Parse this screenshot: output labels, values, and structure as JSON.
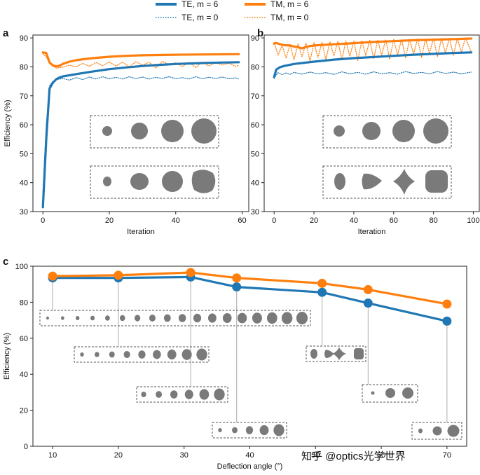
{
  "colors": {
    "te": "#1f77b4",
    "tm": "#ff7f0e",
    "shape": "#7a7a7a"
  },
  "legend": {
    "items": [
      {
        "label": "TE, m = 6",
        "series": "te6",
        "style": "solid"
      },
      {
        "label": "TM, m = 6",
        "series": "tm6",
        "style": "solid"
      },
      {
        "label": "TE, m = 0",
        "series": "te0",
        "style": "dotted"
      },
      {
        "label": "TM, m = 0",
        "series": "tm0",
        "style": "dotted"
      }
    ]
  },
  "panel_a": {
    "letter": "a"
  },
  "panel_b": {
    "letter": "b"
  },
  "panel_c": {
    "letter": "c"
  },
  "watermark": "知乎 @optics光学世界",
  "chart_data": [
    {
      "panel": "a",
      "type": "line",
      "xlabel": "Iteration",
      "ylabel": "Efficiency (%)",
      "xlim": [
        -3,
        62
      ],
      "ylim": [
        30,
        91
      ],
      "xticks": [
        0,
        20,
        40,
        60
      ],
      "yticks": [
        30,
        40,
        50,
        60,
        70,
        80,
        90
      ],
      "series": [
        {
          "name": "TE, m = 6",
          "key": "te6",
          "x": [
            0,
            1,
            2,
            3,
            4,
            5,
            6,
            8,
            10,
            15,
            20,
            25,
            30,
            35,
            40,
            45,
            50,
            55,
            59
          ],
          "y": [
            31.5,
            55,
            72.5,
            74.5,
            75.7,
            76.3,
            76.7,
            77.1,
            77.5,
            78.4,
            79.2,
            79.8,
            80.3,
            80.7,
            81.0,
            81.2,
            81.4,
            81.5,
            81.6
          ]
        },
        {
          "name": "TM, m = 6",
          "key": "tm6",
          "x": [
            0,
            1,
            2,
            3,
            4,
            5,
            6,
            8,
            10,
            15,
            20,
            25,
            30,
            40,
            50,
            59
          ],
          "y": [
            85.0,
            84.8,
            81.5,
            80.5,
            80.2,
            80.4,
            81.0,
            81.8,
            82.3,
            83.0,
            83.5,
            83.8,
            84.0,
            84.2,
            84.3,
            84.4
          ]
        },
        {
          "name": "TE, m = 0",
          "key": "te0",
          "x": [
            0,
            1,
            2,
            3,
            4,
            6,
            8,
            10,
            12,
            14,
            16,
            18,
            20,
            22,
            24,
            26,
            28,
            30,
            32,
            34,
            36,
            38,
            40,
            42,
            44,
            46,
            48,
            50,
            52,
            54,
            56,
            58,
            59
          ],
          "y": [
            36,
            60,
            73.5,
            75.0,
            75.6,
            76.0,
            75.4,
            76.3,
            75.6,
            76.5,
            75.8,
            76.6,
            75.9,
            76.4,
            75.8,
            76.6,
            75.9,
            76.5,
            75.8,
            76.4,
            76.0,
            76.6,
            75.9,
            76.3,
            75.8,
            76.6,
            75.9,
            76.4,
            76.0,
            76.5,
            75.9,
            76.2,
            75.8
          ]
        },
        {
          "name": "TM, m = 0",
          "key": "tm0",
          "x": [
            0,
            1,
            2,
            3,
            4,
            6,
            8,
            10,
            12,
            14,
            16,
            18,
            20,
            22,
            24,
            26,
            28,
            30,
            32,
            34,
            36,
            38,
            40,
            42,
            44,
            46,
            48,
            50,
            52,
            54,
            56,
            58,
            59
          ],
          "y": [
            84.5,
            83.5,
            81.2,
            80.2,
            79.6,
            79.9,
            80.6,
            80.0,
            81.2,
            80.2,
            81.5,
            80.4,
            81.7,
            80.3,
            81.6,
            80.0,
            81.8,
            80.6,
            81.6,
            79.6,
            81.9,
            80.8,
            81.4,
            80.1,
            81.6,
            79.8,
            81.7,
            80.3,
            81.5,
            80.6,
            81.3,
            80.2,
            80.6
          ]
        }
      ]
    },
    {
      "panel": "b",
      "type": "line",
      "xlabel": "Iteration",
      "ylabel": "",
      "xlim": [
        -5,
        103
      ],
      "ylim": [
        30,
        91
      ],
      "xticks": [
        0,
        20,
        40,
        60,
        80,
        100
      ],
      "yticks": [
        30,
        40,
        50,
        60,
        70,
        80,
        90
      ],
      "series": [
        {
          "name": "TE, m = 6",
          "key": "te6",
          "x": [
            0,
            1,
            2,
            3,
            5,
            10,
            20,
            30,
            40,
            50,
            60,
            70,
            80,
            90,
            99
          ],
          "y": [
            76.5,
            79.0,
            79.5,
            79.9,
            80.3,
            81.0,
            81.8,
            82.5,
            83.0,
            83.4,
            83.8,
            84.2,
            84.5,
            84.8,
            85.0
          ]
        },
        {
          "name": "TM, m = 6",
          "key": "tm6",
          "x": [
            0,
            1,
            3,
            5,
            8,
            10,
            12,
            14,
            16,
            18,
            20,
            25,
            30,
            40,
            50,
            60,
            70,
            80,
            90,
            99
          ],
          "y": [
            88.0,
            88.3,
            87.8,
            87.5,
            87.4,
            87.0,
            86.8,
            86.4,
            86.9,
            87.2,
            87.4,
            87.6,
            87.8,
            88.2,
            88.6,
            88.9,
            89.2,
            89.4,
            89.6,
            89.8
          ]
        },
        {
          "name": "TE, m = 0",
          "key": "te0",
          "x": [
            0,
            1,
            2,
            4,
            6,
            8,
            10,
            14,
            18,
            22,
            26,
            30,
            34,
            38,
            42,
            46,
            50,
            54,
            58,
            62,
            66,
            70,
            74,
            78,
            82,
            86,
            90,
            94,
            99
          ],
          "y": [
            76.0,
            77.2,
            78.0,
            77.3,
            77.9,
            77.4,
            78.1,
            77.5,
            78.2,
            77.6,
            78.0,
            77.4,
            78.3,
            77.6,
            78.1,
            77.5,
            78.3,
            77.6,
            78.0,
            77.5,
            78.4,
            77.7,
            78.1,
            77.6,
            78.4,
            77.7,
            78.2,
            77.6,
            78.2
          ]
        },
        {
          "name": "TM, m = 0",
          "key": "tm0",
          "x": [
            0,
            2,
            4,
            6,
            8,
            10,
            12,
            14,
            16,
            18,
            20,
            22,
            24,
            26,
            28,
            30,
            32,
            34,
            36,
            38,
            40,
            42,
            44,
            46,
            48,
            50,
            52,
            54,
            56,
            58,
            60,
            62,
            64,
            66,
            68,
            70,
            72,
            74,
            76,
            78,
            80,
            82,
            84,
            86,
            88,
            90,
            92,
            94,
            96,
            99
          ],
          "y": [
            88.5,
            84.0,
            87.5,
            83.0,
            87.8,
            82.5,
            88.0,
            83.5,
            88.2,
            82.0,
            88.4,
            83.2,
            88.5,
            82.6,
            88.7,
            83.8,
            88.8,
            82.4,
            89.0,
            83.6,
            89.0,
            82.2,
            89.1,
            83.9,
            89.2,
            82.8,
            89.3,
            84.0,
            89.4,
            82.6,
            89.5,
            84.2,
            89.5,
            83.0,
            89.6,
            84.4,
            89.7,
            83.2,
            89.7,
            84.6,
            89.8,
            83.5,
            89.8,
            84.8,
            89.9,
            84.0,
            89.9,
            85.0,
            90.0,
            85.2
          ]
        }
      ]
    },
    {
      "panel": "c",
      "type": "line",
      "xlabel": "Deflection angle (°)",
      "ylabel": "Efficiency (%)",
      "xlim": [
        7,
        73
      ],
      "ylim": [
        0,
        100
      ],
      "xticks": [
        10,
        20,
        30,
        40,
        50,
        60,
        70
      ],
      "yticks": [
        0,
        20,
        40,
        60,
        80,
        100
      ],
      "series": [
        {
          "name": "TE, m = 6",
          "key": "te6",
          "x": [
            10,
            20,
            31,
            38,
            51,
            58,
            70
          ],
          "y": [
            93.5,
            93.5,
            94.0,
            88.5,
            85.5,
            79.5,
            69.5
          ]
        },
        {
          "name": "TM, m = 6",
          "key": "tm6",
          "x": [
            10,
            20,
            31,
            38,
            51,
            58,
            70
          ],
          "y": [
            94.5,
            95.0,
            96.5,
            93.5,
            90.5,
            87.0,
            79.0
          ]
        }
      ]
    }
  ]
}
